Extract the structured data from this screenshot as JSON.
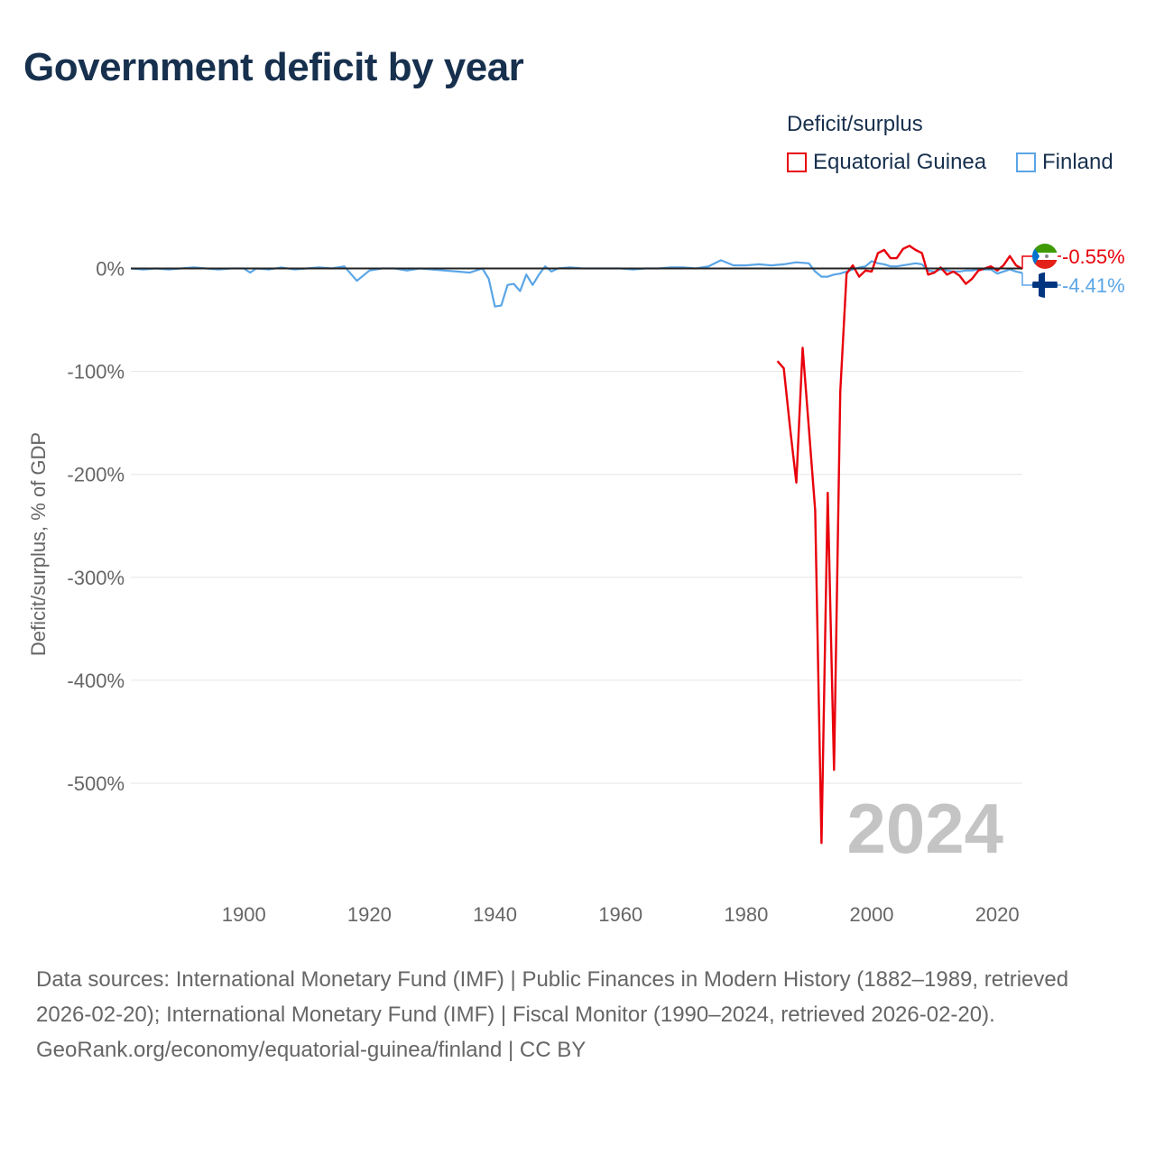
{
  "title": "Government deficit by year",
  "legend": {
    "title": "Deficit/surplus",
    "items": [
      {
        "label": "Equatorial Guinea",
        "color": "#e8000b"
      },
      {
        "label": "Finland",
        "color": "#5aa5e6"
      }
    ]
  },
  "footer": {
    "sources": "Data sources: International Monetary Fund (IMF) | Public Finances in Modern History (1882–1989, retrieved 2026-02-20); International Monetary Fund (IMF) | Fiscal Monitor (1990–2024, retrieved 2026-02-20).",
    "credit": "GeoRank.org/economy/equatorial-guinea/finland | CC BY"
  },
  "chart_data": {
    "type": "line",
    "title": "Government deficit by year",
    "xlabel": "",
    "ylabel": "Deficit/surplus, % of GDP",
    "xlim": [
      1882,
      2024
    ],
    "ylim": [
      -600,
      20
    ],
    "x_ticks": [
      1900,
      1920,
      1940,
      1960,
      1980,
      2000,
      2020
    ],
    "x_tick_labels": [
      "1900",
      "1920",
      "1940",
      "1960",
      "1980",
      "2000",
      "2020"
    ],
    "y_ticks": [
      0,
      -100,
      -200,
      -300,
      -400,
      -500
    ],
    "y_tick_labels": [
      "0%",
      "-100%",
      "-200%",
      "-300%",
      "-400%",
      "-500%"
    ],
    "current_year_label": "2024",
    "series": [
      {
        "name": "Equatorial Guinea",
        "color": "#e8000b",
        "end_label": "-0.55%",
        "flag": "equatorial-guinea-flag",
        "points": [
          [
            1985,
            -90
          ],
          [
            1986,
            -97
          ],
          [
            1987,
            -155
          ],
          [
            1988,
            -208
          ],
          [
            1989,
            -77
          ],
          [
            1990,
            -155
          ],
          [
            1991,
            -235
          ],
          [
            1992,
            -558
          ],
          [
            1993,
            -218
          ],
          [
            1994,
            -487
          ],
          [
            1995,
            -120
          ],
          [
            1996,
            -5
          ],
          [
            1997,
            3
          ],
          [
            1998,
            -8
          ],
          [
            1999,
            -2
          ],
          [
            2000,
            -3
          ],
          [
            2001,
            15
          ],
          [
            2002,
            18
          ],
          [
            2003,
            10
          ],
          [
            2004,
            10
          ],
          [
            2005,
            19
          ],
          [
            2006,
            22
          ],
          [
            2007,
            18
          ],
          [
            2008,
            15
          ],
          [
            2009,
            -6
          ],
          [
            2010,
            -4
          ],
          [
            2011,
            1
          ],
          [
            2012,
            -6
          ],
          [
            2013,
            -3
          ],
          [
            2014,
            -7
          ],
          [
            2015,
            -15
          ],
          [
            2016,
            -10
          ],
          [
            2017,
            -2
          ],
          [
            2018,
            0
          ],
          [
            2019,
            2
          ],
          [
            2020,
            -2
          ],
          [
            2021,
            3
          ],
          [
            2022,
            12
          ],
          [
            2023,
            3
          ],
          [
            2024,
            -0.55
          ]
        ]
      },
      {
        "name": "Finland",
        "color": "#5aa5e6",
        "end_label": "-4.41%",
        "flag": "finland-flag",
        "points": [
          [
            1882,
            0
          ],
          [
            1884,
            -1
          ],
          [
            1886,
            0
          ],
          [
            1888,
            -1
          ],
          [
            1890,
            0
          ],
          [
            1892,
            1
          ],
          [
            1894,
            0
          ],
          [
            1896,
            -1
          ],
          [
            1898,
            0
          ],
          [
            1900,
            0
          ],
          [
            1901,
            -4
          ],
          [
            1902,
            0
          ],
          [
            1904,
            -1
          ],
          [
            1906,
            1
          ],
          [
            1908,
            -1
          ],
          [
            1910,
            0
          ],
          [
            1912,
            1
          ],
          [
            1914,
            0
          ],
          [
            1916,
            2
          ],
          [
            1918,
            -12
          ],
          [
            1920,
            -2
          ],
          [
            1922,
            0
          ],
          [
            1924,
            0
          ],
          [
            1926,
            -2
          ],
          [
            1928,
            0
          ],
          [
            1930,
            -1
          ],
          [
            1932,
            -2
          ],
          [
            1934,
            -3
          ],
          [
            1936,
            -4
          ],
          [
            1938,
            0
          ],
          [
            1939,
            -10
          ],
          [
            1940,
            -37
          ],
          [
            1941,
            -36
          ],
          [
            1942,
            -16
          ],
          [
            1943,
            -15
          ],
          [
            1944,
            -22
          ],
          [
            1945,
            -6
          ],
          [
            1946,
            -16
          ],
          [
            1947,
            -6
          ],
          [
            1948,
            2
          ],
          [
            1949,
            -3
          ],
          [
            1950,
            0
          ],
          [
            1952,
            1
          ],
          [
            1954,
            0
          ],
          [
            1956,
            0
          ],
          [
            1958,
            0
          ],
          [
            1960,
            0
          ],
          [
            1962,
            -1
          ],
          [
            1964,
            0
          ],
          [
            1966,
            0
          ],
          [
            1968,
            1
          ],
          [
            1970,
            1
          ],
          [
            1972,
            0
          ],
          [
            1974,
            2
          ],
          [
            1976,
            8
          ],
          [
            1978,
            3
          ],
          [
            1980,
            3
          ],
          [
            1982,
            4
          ],
          [
            1984,
            3
          ],
          [
            1986,
            4
          ],
          [
            1988,
            6
          ],
          [
            1990,
            5
          ],
          [
            1991,
            -3
          ],
          [
            1992,
            -8
          ],
          [
            1993,
            -8
          ],
          [
            1994,
            -6
          ],
          [
            1995,
            -5
          ],
          [
            1996,
            -3
          ],
          [
            1997,
            -1
          ],
          [
            1998,
            1
          ],
          [
            1999,
            2
          ],
          [
            2000,
            7
          ],
          [
            2001,
            5
          ],
          [
            2002,
            4
          ],
          [
            2003,
            2
          ],
          [
            2004,
            2
          ],
          [
            2005,
            3
          ],
          [
            2006,
            4
          ],
          [
            2007,
            5
          ],
          [
            2008,
            4
          ],
          [
            2009,
            -2
          ],
          [
            2010,
            -3
          ],
          [
            2011,
            -1
          ],
          [
            2012,
            -2
          ],
          [
            2013,
            -3
          ],
          [
            2014,
            -3
          ],
          [
            2015,
            -2
          ],
          [
            2016,
            -2
          ],
          [
            2017,
            -1
          ],
          [
            2018,
            -1
          ],
          [
            2019,
            -1
          ],
          [
            2020,
            -5
          ],
          [
            2021,
            -3
          ],
          [
            2022,
            -1
          ],
          [
            2023,
            -3
          ],
          [
            2024,
            -4.41
          ]
        ]
      }
    ]
  }
}
